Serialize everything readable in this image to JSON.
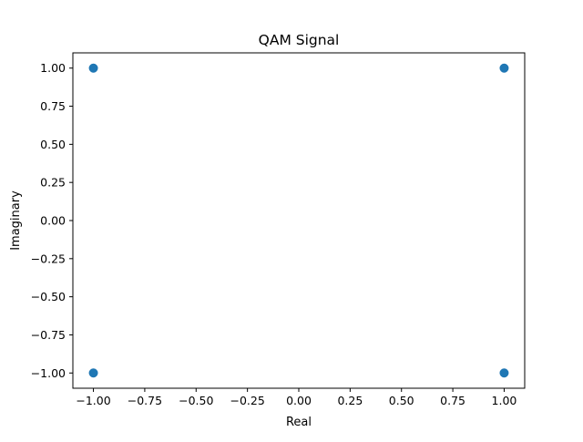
{
  "chart_data": {
    "type": "scatter",
    "title": "QAM Signal",
    "xlabel": "Real",
    "ylabel": "Imaginary",
    "xlim": [
      -1.1,
      1.1
    ],
    "ylim": [
      -1.1,
      1.1
    ],
    "x_ticks": [
      -1.0,
      -0.75,
      -0.5,
      -0.25,
      0.0,
      0.25,
      0.5,
      0.75,
      1.0
    ],
    "x_tick_labels": [
      "−1.00",
      "−0.75",
      "−0.50",
      "−0.25",
      "0.00",
      "0.25",
      "0.50",
      "0.75",
      "1.00"
    ],
    "y_ticks": [
      -1.0,
      -0.75,
      -0.5,
      -0.25,
      0.0,
      0.25,
      0.5,
      0.75,
      1.0
    ],
    "y_tick_labels": [
      "−1.00",
      "−0.75",
      "−0.50",
      "−0.25",
      "0.00",
      "0.25",
      "0.50",
      "0.75",
      "1.00"
    ],
    "grid": false,
    "legend": "none",
    "color": "#1f77b4",
    "points": [
      {
        "x": -1,
        "y": 1
      },
      {
        "x": 1,
        "y": 1
      },
      {
        "x": -1,
        "y": -1
      },
      {
        "x": 1,
        "y": -1
      }
    ]
  }
}
